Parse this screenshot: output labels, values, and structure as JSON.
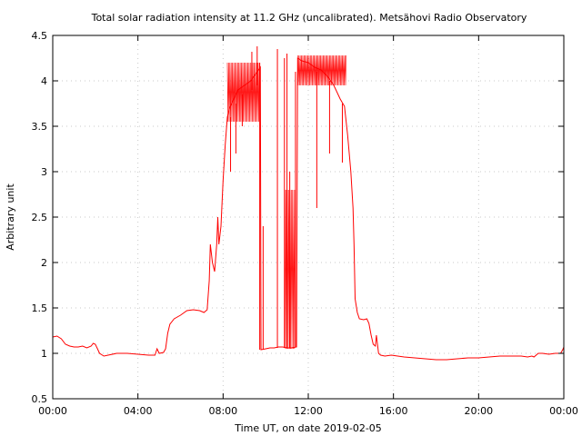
{
  "chart_data": {
    "type": "line",
    "title": "Total solar radiation intensity at 11.2 GHz (uncalibrated). Metsähovi Radio Observatory",
    "xlabel": "Time UT, on date 2019-02-05",
    "ylabel": "Arbitrary unit",
    "xlim": [
      0,
      24
    ],
    "ylim": [
      0.5,
      4.5
    ],
    "grid": true,
    "x_ticks": [
      0,
      4,
      8,
      12,
      16,
      20,
      24
    ],
    "x_tick_labels": [
      "00:00",
      "04:00",
      "08:00",
      "12:00",
      "16:00",
      "20:00",
      "00:00"
    ],
    "y_ticks": [
      0.5,
      1,
      1.5,
      2,
      2.5,
      3,
      3.5,
      4,
      4.5
    ],
    "y_tick_labels": [
      "0.5",
      "1",
      "1.5",
      "2",
      "2.5",
      "3",
      "3.5",
      "4",
      "4.5"
    ],
    "series": [
      {
        "color": "#ff0000",
        "points": [
          [
            0.0,
            1.18
          ],
          [
            0.2,
            1.19
          ],
          [
            0.4,
            1.16
          ],
          [
            0.6,
            1.1
          ],
          [
            0.8,
            1.08
          ],
          [
            1.0,
            1.07
          ],
          [
            1.2,
            1.07
          ],
          [
            1.4,
            1.08
          ],
          [
            1.6,
            1.06
          ],
          [
            1.8,
            1.08
          ],
          [
            1.9,
            1.11
          ],
          [
            2.0,
            1.1
          ],
          [
            2.1,
            1.05
          ],
          [
            2.2,
            1.0
          ],
          [
            2.4,
            0.97
          ],
          [
            2.6,
            0.98
          ],
          [
            3.0,
            1.0
          ],
          [
            3.5,
            1.0
          ],
          [
            4.0,
            0.99
          ],
          [
            4.5,
            0.98
          ],
          [
            4.8,
            0.98
          ],
          [
            4.9,
            1.05
          ],
          [
            5.0,
            1.0
          ],
          [
            5.2,
            1.01
          ],
          [
            5.3,
            1.05
          ],
          [
            5.4,
            1.22
          ],
          [
            5.5,
            1.32
          ],
          [
            5.7,
            1.38
          ],
          [
            6.0,
            1.42
          ],
          [
            6.3,
            1.47
          ],
          [
            6.6,
            1.48
          ],
          [
            6.9,
            1.47
          ],
          [
            7.1,
            1.45
          ],
          [
            7.25,
            1.48
          ],
          [
            7.35,
            1.8
          ],
          [
            7.4,
            2.2
          ],
          [
            7.5,
            2.0
          ],
          [
            7.6,
            1.9
          ],
          [
            7.7,
            2.2
          ],
          [
            7.75,
            2.5
          ],
          [
            7.8,
            2.2
          ],
          [
            7.9,
            2.4
          ],
          [
            8.0,
            2.9
          ],
          [
            8.1,
            3.3
          ],
          [
            8.2,
            3.6
          ],
          [
            8.3,
            3.7
          ],
          [
            8.5,
            3.8
          ],
          [
            8.7,
            3.9
          ],
          [
            9.0,
            3.95
          ],
          [
            9.3,
            4.0
          ],
          [
            9.6,
            4.1
          ],
          [
            9.75,
            4.15
          ],
          [
            9.78,
            1.04
          ],
          [
            10.0,
            1.05
          ],
          [
            10.2,
            1.06
          ],
          [
            10.4,
            1.06
          ],
          [
            10.6,
            1.07
          ],
          [
            10.8,
            1.07
          ],
          [
            11.0,
            1.06
          ],
          [
            11.2,
            1.06
          ],
          [
            11.45,
            1.07
          ],
          [
            11.5,
            4.25
          ],
          [
            11.7,
            4.22
          ],
          [
            12.0,
            4.2
          ],
          [
            12.3,
            4.15
          ],
          [
            12.6,
            4.12
          ],
          [
            12.9,
            4.05
          ],
          [
            13.2,
            3.95
          ],
          [
            13.5,
            3.8
          ],
          [
            13.7,
            3.72
          ],
          [
            13.85,
            3.4
          ],
          [
            14.0,
            3.0
          ],
          [
            14.1,
            2.6
          ],
          [
            14.15,
            2.2
          ],
          [
            14.2,
            1.6
          ],
          [
            14.3,
            1.45
          ],
          [
            14.4,
            1.38
          ],
          [
            14.6,
            1.37
          ],
          [
            14.75,
            1.38
          ],
          [
            14.85,
            1.33
          ],
          [
            14.95,
            1.2
          ],
          [
            15.05,
            1.1
          ],
          [
            15.15,
            1.08
          ],
          [
            15.2,
            1.2
          ],
          [
            15.25,
            1.1
          ],
          [
            15.3,
            1.0
          ],
          [
            15.4,
            0.98
          ],
          [
            15.6,
            0.97
          ],
          [
            15.9,
            0.98
          ],
          [
            16.5,
            0.96
          ],
          [
            17.0,
            0.95
          ],
          [
            17.5,
            0.94
          ],
          [
            18.0,
            0.93
          ],
          [
            18.5,
            0.93
          ],
          [
            19.0,
            0.94
          ],
          [
            19.5,
            0.95
          ],
          [
            20.0,
            0.95
          ],
          [
            20.5,
            0.96
          ],
          [
            21.0,
            0.97
          ],
          [
            21.5,
            0.97
          ],
          [
            22.0,
            0.97
          ],
          [
            22.3,
            0.96
          ],
          [
            22.5,
            0.97
          ],
          [
            22.6,
            0.96
          ],
          [
            22.8,
            1.0
          ],
          [
            23.0,
            1.0
          ],
          [
            23.3,
            0.99
          ],
          [
            23.6,
            1.0
          ],
          [
            23.85,
            1.0
          ],
          [
            23.95,
            1.04
          ],
          [
            24.0,
            1.07
          ]
        ],
        "spikes": [
          [
            9.35,
            4.32,
            3.9
          ],
          [
            9.6,
            4.38,
            3.95
          ],
          [
            9.72,
            4.2,
            1.04
          ],
          [
            9.88,
            2.4,
            1.05
          ],
          [
            10.55,
            4.35,
            1.06
          ],
          [
            10.88,
            4.25,
            1.06
          ],
          [
            11.0,
            4.3,
            1.06
          ],
          [
            11.13,
            3.0,
            1.06
          ],
          [
            11.4,
            4.1,
            1.07
          ],
          [
            12.4,
            2.6,
            4.1
          ],
          [
            13.0,
            3.2,
            4.0
          ],
          [
            13.6,
            3.1,
            3.75
          ],
          [
            8.35,
            3.0,
            3.6
          ],
          [
            8.6,
            3.2,
            3.75
          ],
          [
            8.9,
            3.5,
            3.85
          ]
        ],
        "bands": [
          [
            10.9,
            11.38,
            1.05,
            2.8
          ],
          [
            8.2,
            9.75,
            3.55,
            4.2
          ],
          [
            11.5,
            13.8,
            3.95,
            4.28
          ]
        ]
      }
    ]
  }
}
